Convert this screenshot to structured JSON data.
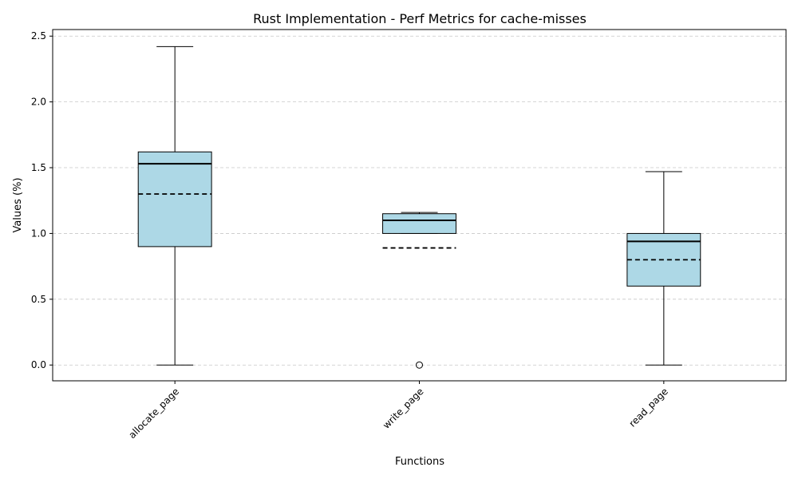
{
  "chart_data": {
    "type": "box",
    "title": "Rust Implementation - Perf Metrics for cache-misses",
    "xlabel": "Functions",
    "ylabel": "Values (%)",
    "categories": [
      "allocate_page",
      "write_page",
      "read_page"
    ],
    "ylim": [
      -0.12,
      2.55
    ],
    "yticks": [
      0.0,
      0.5,
      1.0,
      1.5,
      2.0,
      2.5
    ],
    "ytick_labels": [
      "0.0",
      "0.5",
      "1.0",
      "1.5",
      "2.0",
      "2.5"
    ],
    "grid": "y-dashed",
    "box_color": "#add8e6",
    "median_line": "solid",
    "mean_line": "dashed",
    "boxes": [
      {
        "name": "allocate_page",
        "whisker_low": 0.0,
        "q1": 0.9,
        "median": 1.53,
        "mean": 1.3,
        "q3": 1.62,
        "whisker_high": 2.42,
        "outliers": []
      },
      {
        "name": "write_page",
        "whisker_low": 1.0,
        "q1": 1.0,
        "median": 1.1,
        "mean": 0.89,
        "q3": 1.15,
        "whisker_high": 1.16,
        "outliers": [
          0.0
        ]
      },
      {
        "name": "read_page",
        "whisker_low": 0.0,
        "q1": 0.6,
        "median": 0.94,
        "mean": 0.8,
        "q3": 1.0,
        "whisker_high": 1.47,
        "outliers": []
      }
    ]
  }
}
